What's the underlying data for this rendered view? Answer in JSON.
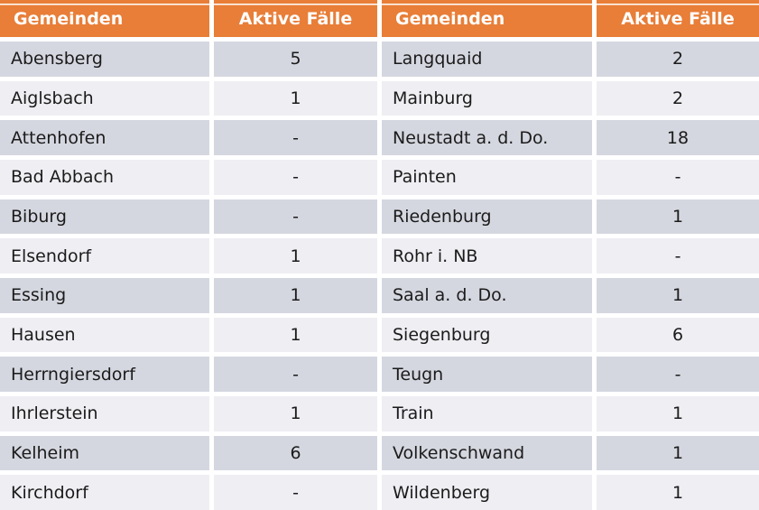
{
  "chart_data": {
    "type": "table",
    "columns": [
      "Gemeinden",
      "Aktive Fälle",
      "Gemeinden",
      "Aktive Fälle"
    ],
    "rows": [
      [
        "Abensberg",
        "5",
        "Langquaid",
        "2"
      ],
      [
        "Aiglsbach",
        "1",
        "Mainburg",
        "2"
      ],
      [
        "Attenhofen",
        "-",
        "Neustadt a. d. Do.",
        "18"
      ],
      [
        "Bad Abbach",
        "-",
        "Painten",
        "-"
      ],
      [
        "Biburg",
        "-",
        "Riedenburg",
        "1"
      ],
      [
        "Elsendorf",
        "1",
        "Rohr i. NB",
        "-"
      ],
      [
        "Essing",
        "1",
        "Saal a. d. Do.",
        "1"
      ],
      [
        "Hausen",
        "1",
        "Siegenburg",
        "6"
      ],
      [
        "Herrngiersdorf",
        "-",
        "Teugn",
        "-"
      ],
      [
        "Ihrlerstein",
        "1",
        "Train",
        "1"
      ],
      [
        "Kelheim",
        "6",
        "Volkenschwand",
        "1"
      ],
      [
        "Kirchdorf",
        "-",
        "Wildenberg",
        "1"
      ]
    ]
  },
  "colors": {
    "header_bg": "#E87E38",
    "header_text": "#FFFFFF",
    "row_dark": "#D5D7E0",
    "row_light": "#EEEEF3",
    "cell_text": "#1B1B1B",
    "gap": "#FFFFFF"
  }
}
